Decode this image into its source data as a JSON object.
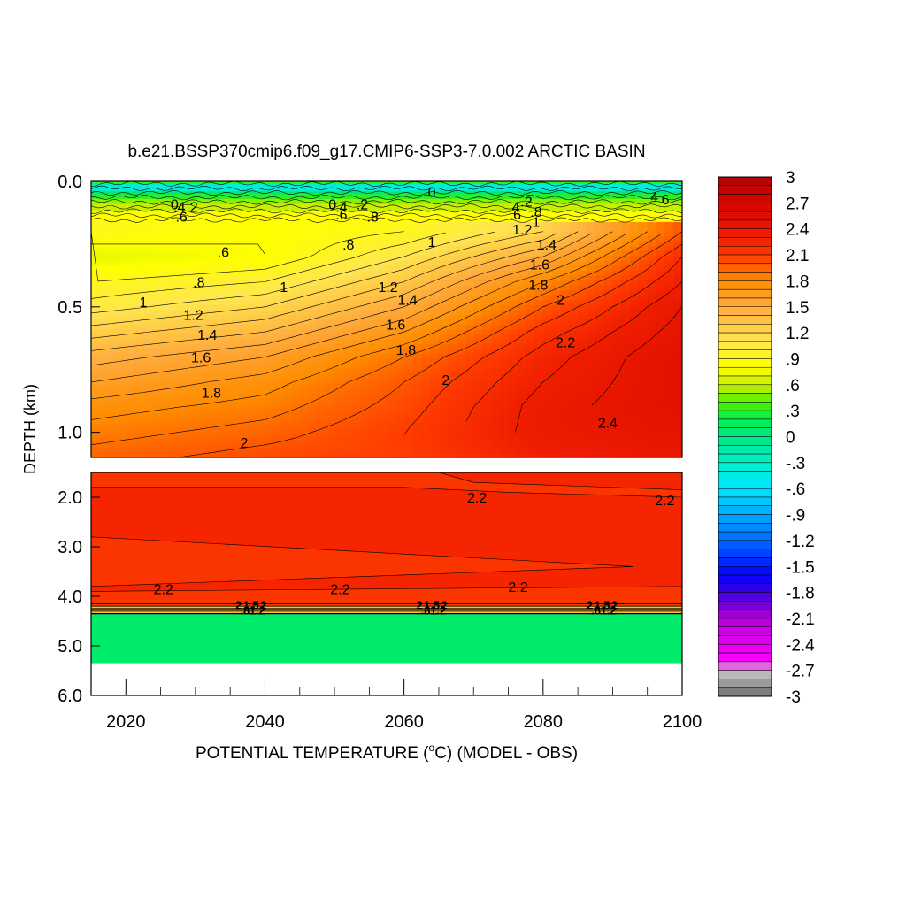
{
  "chart_data": {
    "type": "heatmap",
    "title": "b.e21.BSSP370cmip6.f09_g17.CMIP6-SSP3-7.0.002 ARCTIC BASIN",
    "xlabel": "POTENTIAL TEMPERATURE (",
    "xlabel_unit_sup": "o",
    "xlabel_suffix": "C) (MODEL - OBS)",
    "ylabel": "DEPTH (km)",
    "xlim": [
      2015,
      2100
    ],
    "x_ticks": [
      {
        "value": 2020,
        "label": "2020"
      },
      {
        "value": 2040,
        "label": "2040"
      },
      {
        "value": 2060,
        "label": "2060"
      },
      {
        "value": 2080,
        "label": "2080"
      },
      {
        "value": 2100,
        "label": "2100"
      }
    ],
    "upper_panel": {
      "ylim": [
        0.0,
        1.1
      ],
      "y_ticks": [
        {
          "value": 0.0,
          "label": "0.0"
        },
        {
          "value": 0.5,
          "label": "0.5"
        },
        {
          "value": 1.0,
          "label": "1.0"
        }
      ],
      "bands": [
        {
          "year_start": 2015,
          "year_end": 2100,
          "boundary_depths": [
            0.0,
            0.01,
            0.02,
            0.03,
            0.04,
            0.05,
            0.07
          ],
          "values": [
            0.3,
            -0.3,
            -0.5,
            -0.3,
            0.0,
            0.3
          ]
        },
        {
          "year_start": 2015,
          "year_end": 2100,
          "boundary_depths": [
            0.07,
            0.09,
            0.12,
            0.16
          ],
          "values": [
            0.5,
            0.6,
            0.8
          ]
        }
      ],
      "grid": [
        {
          "year": 2015,
          "depths": [
            0.2,
            0.3,
            0.4,
            0.5,
            0.6,
            0.7,
            0.8,
            0.9,
            1.0,
            1.1
          ],
          "values": [
            0.9,
            0.7,
            0.9,
            1.05,
            1.25,
            1.45,
            1.6,
            1.75,
            1.85,
            1.95
          ]
        },
        {
          "year": 2040,
          "depths": [
            0.2,
            0.3,
            0.4,
            0.5,
            0.6,
            0.7,
            0.8,
            0.9,
            1.0,
            1.1
          ],
          "values": [
            0.8,
            0.8,
            1.0,
            1.2,
            1.4,
            1.6,
            1.75,
            1.85,
            1.95,
            2.05
          ]
        },
        {
          "year": 2060,
          "depths": [
            0.2,
            0.3,
            0.4,
            0.5,
            0.6,
            0.7,
            0.8,
            0.9,
            1.0,
            1.1
          ],
          "values": [
            0.9,
            1.1,
            1.3,
            1.5,
            1.7,
            1.9,
            2.0,
            2.05,
            2.1,
            2.1
          ]
        },
        {
          "year": 2080,
          "depths": [
            0.2,
            0.3,
            0.4,
            0.5,
            0.6,
            0.7,
            0.8,
            0.9,
            1.0,
            1.1
          ],
          "values": [
            1.2,
            1.5,
            1.8,
            2.0,
            2.15,
            2.25,
            2.3,
            2.35,
            2.35,
            2.3
          ]
        },
        {
          "year": 2100,
          "depths": [
            0.2,
            0.3,
            0.4,
            0.5,
            0.6,
            0.7,
            0.8,
            0.9,
            1.0,
            1.1
          ],
          "values": [
            2.0,
            2.2,
            2.3,
            2.4,
            2.45,
            2.5,
            2.5,
            2.5,
            2.45,
            2.4
          ]
        }
      ],
      "contour_labels": [
        {
          "label": "0",
          "year": 2027,
          "depth": 0.09
        },
        {
          "label": ".4",
          "year": 2027.7,
          "depth": 0.1
        },
        {
          "label": ".2",
          "year": 2029.5,
          "depth": 0.1
        },
        {
          "label": ".6",
          "year": 2028,
          "depth": 0.14
        },
        {
          "label": "0",
          "year": 2049.7,
          "depth": 0.09
        },
        {
          "label": ".4",
          "year": 2051,
          "depth": 0.1
        },
        {
          "label": ".2",
          "year": 2054,
          "depth": 0.09
        },
        {
          "label": ".6",
          "year": 2051,
          "depth": 0.13
        },
        {
          "label": ".8",
          "year": 2055.5,
          "depth": 0.14
        },
        {
          "label": "0",
          "year": 2064,
          "depth": 0.04
        },
        {
          "label": ".4",
          "year": 2075.8,
          "depth": 0.1
        },
        {
          "label": ".2",
          "year": 2077.6,
          "depth": 0.08
        },
        {
          "label": ".6",
          "year": 2076,
          "depth": 0.13
        },
        {
          "label": ".8",
          "year": 2079,
          "depth": 0.12
        },
        {
          "label": "1.2",
          "year": 2077,
          "depth": 0.19
        },
        {
          "label": "1",
          "year": 2079,
          "depth": 0.16
        },
        {
          "label": "1.4",
          "year": 2080.5,
          "depth": 0.25
        },
        {
          "label": "4",
          "year": 2096,
          "depth": 0.06
        },
        {
          "label": "6",
          "year": 2097.6,
          "depth": 0.07
        },
        {
          "label": ".6",
          "year": 2034,
          "depth": 0.28
        },
        {
          "label": ".8",
          "year": 2052,
          "depth": 0.25
        },
        {
          "label": "1",
          "year": 2064,
          "depth": 0.24
        },
        {
          "label": ".8",
          "year": 2030.5,
          "depth": 0.4
        },
        {
          "label": "1",
          "year": 2042.7,
          "depth": 0.42
        },
        {
          "label": "1.2",
          "year": 2057.7,
          "depth": 0.42
        },
        {
          "label": "1.4",
          "year": 2060.5,
          "depth": 0.47
        },
        {
          "label": "1",
          "year": 2022.5,
          "depth": 0.48
        },
        {
          "label": "1.2",
          "year": 2029.7,
          "depth": 0.53
        },
        {
          "label": "1.4",
          "year": 2031.7,
          "depth": 0.61
        },
        {
          "label": "1.6",
          "year": 2058.8,
          "depth": 0.57
        },
        {
          "label": "1.6",
          "year": 2030.8,
          "depth": 0.7
        },
        {
          "label": "1.8",
          "year": 2060.3,
          "depth": 0.67
        },
        {
          "label": "1.8",
          "year": 2032.3,
          "depth": 0.84
        },
        {
          "label": "1.6",
          "year": 2079.5,
          "depth": 0.33
        },
        {
          "label": "1.8",
          "year": 2079.3,
          "depth": 0.41
        },
        {
          "label": "2",
          "year": 2082.5,
          "depth": 0.47
        },
        {
          "label": "2.2",
          "year": 2083.2,
          "depth": 0.64
        },
        {
          "label": "2",
          "year": 2066,
          "depth": 0.79
        },
        {
          "label": "2.4",
          "year": 2089.3,
          "depth": 0.96
        },
        {
          "label": "2",
          "year": 2037,
          "depth": 1.04
        }
      ]
    },
    "lower_panel": {
      "ylim": [
        1.5,
        6.0
      ],
      "y_ticks": [
        {
          "value": 2.0,
          "label": "2.0"
        },
        {
          "value": 3.0,
          "label": "3.0"
        },
        {
          "value": 4.0,
          "label": "4.0"
        },
        {
          "value": 5.0,
          "label": "5.0"
        },
        {
          "value": 6.0,
          "label": "6.0"
        }
      ],
      "layers": [
        {
          "depth_top": 1.5,
          "depth_bottom": 4.2,
          "value": 2.15
        },
        {
          "depth_top": 4.2,
          "depth_bottom": 4.35,
          "value": 1.4
        },
        {
          "depth_top": 4.35,
          "depth_bottom": 5.35,
          "value": 0.1
        },
        {
          "depth_top": 5.35,
          "depth_bottom": 6.0,
          "value": null
        }
      ],
      "regions": [
        {
          "value": 2.25,
          "depth_top": 1.5,
          "depth_bottom": 4.2,
          "boundary": [
            [
              2015,
              1.8
            ],
            [
              2060,
              1.8
            ],
            [
              2075,
              1.9
            ],
            [
              2100,
              2.0
            ],
            [
              2100,
              3.8
            ],
            [
              2015,
              3.9
            ]
          ]
        },
        {
          "value": 2.25,
          "depth_top": 1.5,
          "depth_bottom": 4.2,
          "boundary": [
            [
              2065,
              1.5
            ],
            [
              2100,
              1.5
            ],
            [
              2100,
              1.85
            ],
            [
              2070,
              1.7
            ]
          ]
        },
        {
          "value": 2.15,
          "depth_top": 1.5,
          "depth_bottom": 4.2,
          "boundary": [
            [
              2015,
              2.8
            ],
            [
              2093,
              3.4
            ],
            [
              2015,
              3.8
            ]
          ]
        }
      ],
      "contour_labels": [
        {
          "label": "2.2",
          "year": 2070.5,
          "depth": 2.0
        },
        {
          "label": "2.2",
          "year": 2097.5,
          "depth": 2.05
        },
        {
          "label": "2.2",
          "year": 2025.4,
          "depth": 3.85
        },
        {
          "label": "2.2",
          "year": 2050.8,
          "depth": 3.85
        },
        {
          "label": "2.2",
          "year": 2076.4,
          "depth": 3.8
        }
      ],
      "clusters": [
        {
          "year": 2038
        },
        {
          "year": 2064
        },
        {
          "year": 2088.5
        }
      ]
    },
    "colorbar": {
      "min": -3,
      "max": 3,
      "tick_labels": [
        {
          "value": 3,
          "label": "3"
        },
        {
          "value": 2.7,
          "label": "2.7"
        },
        {
          "value": 2.4,
          "label": "2.4"
        },
        {
          "value": 2.1,
          "label": "2.1"
        },
        {
          "value": 1.8,
          "label": "1.8"
        },
        {
          "value": 1.5,
          "label": "1.5"
        },
        {
          "value": 1.2,
          "label": "1.2"
        },
        {
          "value": 0.9,
          "label": ".9"
        },
        {
          "value": 0.6,
          "label": ".6"
        },
        {
          "value": 0.3,
          "label": ".3"
        },
        {
          "value": 0,
          "label": "0"
        },
        {
          "value": -0.3,
          "label": "-.3"
        },
        {
          "value": -0.6,
          "label": "-.6"
        },
        {
          "value": -0.9,
          "label": "-.9"
        },
        {
          "value": -1.2,
          "label": "-1.2"
        },
        {
          "value": -1.5,
          "label": "-1.5"
        },
        {
          "value": -1.8,
          "label": "-1.8"
        },
        {
          "value": -2.1,
          "label": "-2.1"
        },
        {
          "value": -2.4,
          "label": "-2.4"
        },
        {
          "value": -2.7,
          "label": "-2.7"
        },
        {
          "value": -3,
          "label": "-3"
        }
      ],
      "stops": [
        {
          "value": -3.0,
          "color": "#6e6e6e"
        },
        {
          "value": -2.7,
          "color": "#c8c8c8"
        },
        {
          "value": -2.6,
          "color": "#ff00ff"
        },
        {
          "value": -2.2,
          "color": "#c800e0"
        },
        {
          "value": -2.0,
          "color": "#8c00d2"
        },
        {
          "value": -1.8,
          "color": "#3c00e6"
        },
        {
          "value": -1.6,
          "color": "#0000ff"
        },
        {
          "value": -1.3,
          "color": "#0050ff"
        },
        {
          "value": -1.0,
          "color": "#0096ff"
        },
        {
          "value": -0.6,
          "color": "#00e6ff"
        },
        {
          "value": -0.3,
          "color": "#00f0c8"
        },
        {
          "value": 0.0,
          "color": "#00e682"
        },
        {
          "value": 0.2,
          "color": "#00f050"
        },
        {
          "value": 0.4,
          "color": "#50f000"
        },
        {
          "value": 0.6,
          "color": "#c8f000"
        },
        {
          "value": 0.8,
          "color": "#ffff00"
        },
        {
          "value": 1.1,
          "color": "#ffe650"
        },
        {
          "value": 1.5,
          "color": "#ffaa3c"
        },
        {
          "value": 1.8,
          "color": "#ff8c00"
        },
        {
          "value": 2.1,
          "color": "#ff3c00"
        },
        {
          "value": 2.3,
          "color": "#f01e00"
        },
        {
          "value": 2.6,
          "color": "#dc0a00"
        },
        {
          "value": 3.0,
          "color": "#b40000"
        }
      ]
    }
  }
}
